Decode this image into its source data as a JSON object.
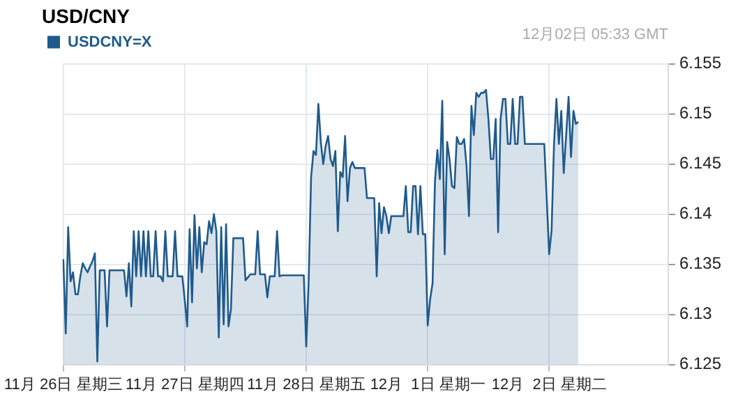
{
  "chart_data": {
    "type": "area",
    "title": "USD/CNY",
    "annotations": [
      "12月02日 05:33 GMT"
    ],
    "categories": [
      "11月 26日 星期三",
      null,
      null,
      null,
      null,
      null,
      null,
      null,
      null,
      null,
      null,
      null,
      null,
      null,
      null,
      null,
      null,
      null,
      null,
      null,
      null,
      null,
      null,
      null,
      null,
      null,
      null,
      null,
      null,
      null,
      null,
      null,
      null,
      null,
      null,
      null,
      null,
      null,
      null,
      null,
      null,
      null,
      null,
      null,
      null,
      null,
      null,
      null,
      null,
      null,
      "11月 27日 星期四",
      null,
      null,
      null,
      null,
      null,
      null,
      null,
      null,
      null,
      null,
      null,
      null,
      null,
      null,
      null,
      null,
      null,
      null,
      null,
      null,
      null,
      null,
      null,
      null,
      null,
      null,
      null,
      null,
      null,
      null,
      null,
      null,
      null,
      null,
      null,
      null,
      null,
      null,
      null,
      null,
      null,
      null,
      null,
      null,
      null,
      null,
      null,
      null,
      null,
      "11月 28日 星期五",
      null,
      null,
      null,
      null,
      null,
      null,
      null,
      null,
      null,
      null,
      null,
      null,
      null,
      null,
      null,
      null,
      null,
      null,
      null,
      null,
      null,
      null,
      null,
      null,
      null,
      null,
      null,
      null,
      null,
      null,
      null,
      null,
      null,
      null,
      null,
      null,
      null,
      null,
      null,
      null,
      null,
      null,
      null,
      null,
      null,
      null,
      null,
      null,
      null,
      "12月  1日 星期一",
      null,
      null,
      null,
      null,
      null,
      null,
      null,
      null,
      null,
      null,
      null,
      null,
      null,
      null,
      null,
      null,
      null,
      null,
      null,
      null,
      null,
      null,
      null,
      null,
      null,
      null,
      null,
      null,
      null,
      null,
      null,
      null,
      null,
      null,
      null,
      null,
      null,
      null,
      null,
      null,
      null,
      null,
      null,
      null,
      null,
      null,
      null,
      null,
      null,
      "12月  2日 星期二",
      null,
      null,
      null,
      null,
      null,
      null,
      null,
      null,
      null,
      null,
      null,
      null,
      null,
      null,
      null,
      null,
      null,
      null,
      null,
      null,
      null,
      null,
      null,
      null,
      null,
      null,
      null,
      null,
      null,
      null,
      null,
      null,
      null,
      null,
      null,
      null,
      null,
      null,
      null,
      null,
      null,
      null,
      null,
      null,
      null,
      null,
      null,
      null,
      null
    ],
    "ylim": [
      6.125,
      6.155
    ],
    "yticks": [
      6.125,
      6.13,
      6.135,
      6.14,
      6.145,
      6.15,
      6.155
    ],
    "grid": true,
    "legend": "top left",
    "marker": "none",
    "series": [
      {
        "name": "USDCNY=X",
        "color": "#1f5a8c",
        "values": [
          6.1355,
          6.1281,
          6.1387,
          6.1333,
          6.1342,
          6.132,
          6.132,
          6.1338,
          6.1351,
          6.1346,
          6.1342,
          6.1348,
          6.1353,
          6.1361,
          6.1253,
          6.1344,
          6.1344,
          6.1344,
          6.1288,
          6.1344,
          6.1344,
          6.1344,
          6.1344,
          6.1344,
          6.1344,
          6.1344,
          6.1318,
          6.1351,
          6.1308,
          6.1383,
          6.1338,
          6.1383,
          6.1338,
          6.1383,
          6.1338,
          6.1383,
          6.1338,
          6.1338,
          6.1383,
          6.1338,
          6.1338,
          6.1333,
          6.1383,
          6.1338,
          6.1338,
          6.1338,
          6.1383,
          6.1338,
          6.1338,
          6.1338,
          6.1314,
          6.1288,
          6.1385,
          6.1312,
          6.1399,
          6.1346,
          6.1387,
          6.1342,
          6.1372,
          6.137,
          6.1393,
          6.1381,
          6.14,
          6.1383,
          6.1277,
          6.1387,
          6.129,
          6.139,
          6.1288,
          6.1305,
          6.1376,
          6.1376,
          6.1376,
          6.1376,
          6.1376,
          6.1334,
          6.1337,
          6.134,
          6.134,
          6.134,
          6.1383,
          6.134,
          6.134,
          6.134,
          6.1317,
          6.1338,
          6.1338,
          6.1338,
          6.1383,
          6.1338,
          6.1339,
          6.1339,
          6.1339,
          6.1339,
          6.1339,
          6.1339,
          6.1339,
          6.1339,
          6.1339,
          6.1339,
          6.1268,
          6.1333,
          6.1437,
          6.1463,
          6.1459,
          6.151,
          6.1472,
          6.145,
          6.1468,
          6.1478,
          6.1455,
          6.1448,
          6.1463,
          6.1383,
          6.1442,
          6.1437,
          6.1478,
          6.1413,
          6.1446,
          6.1452,
          6.1446,
          6.1446,
          6.1446,
          6.1446,
          6.1446,
          6.1416,
          6.1416,
          6.1416,
          6.1416,
          6.1338,
          6.1411,
          6.1381,
          6.1407,
          6.1398,
          6.1381,
          6.1398,
          6.1398,
          6.1398,
          6.1398,
          6.1398,
          6.1398,
          6.1428,
          6.1382,
          6.1382,
          6.1428,
          6.1428,
          6.138,
          6.1428,
          6.138,
          6.138,
          6.1289,
          6.1315,
          6.1331,
          6.1433,
          6.1464,
          6.1435,
          6.1513,
          6.136,
          6.1472,
          6.1455,
          6.1428,
          6.1426,
          6.1477,
          6.147,
          6.147,
          6.1475,
          6.1448,
          6.1398,
          6.1508,
          6.1479,
          6.1521,
          6.1517,
          6.1521,
          6.1521,
          6.1524,
          6.1495,
          6.1455,
          6.1455,
          6.1495,
          6.1382,
          6.1495,
          6.1515,
          6.1515,
          6.147,
          6.147,
          6.1515,
          6.147,
          6.147,
          6.1517,
          6.1517,
          6.147,
          6.147,
          6.147,
          6.147,
          6.147,
          6.147,
          6.147,
          6.147,
          6.147,
          6.1415,
          6.136,
          6.1384,
          6.147,
          6.1515,
          6.147,
          6.1503,
          6.1441,
          6.1479,
          6.1517,
          6.1457,
          6.1503,
          6.149,
          6.1492,
          null,
          null,
          null,
          null,
          null,
          null,
          null,
          null,
          null,
          null,
          null,
          null,
          null,
          null,
          null,
          null,
          null,
          null,
          null,
          null,
          null,
          null,
          null,
          null,
          null,
          null,
          null,
          null,
          null,
          null,
          null,
          null,
          null,
          null,
          null,
          null,
          null
        ]
      }
    ]
  }
}
